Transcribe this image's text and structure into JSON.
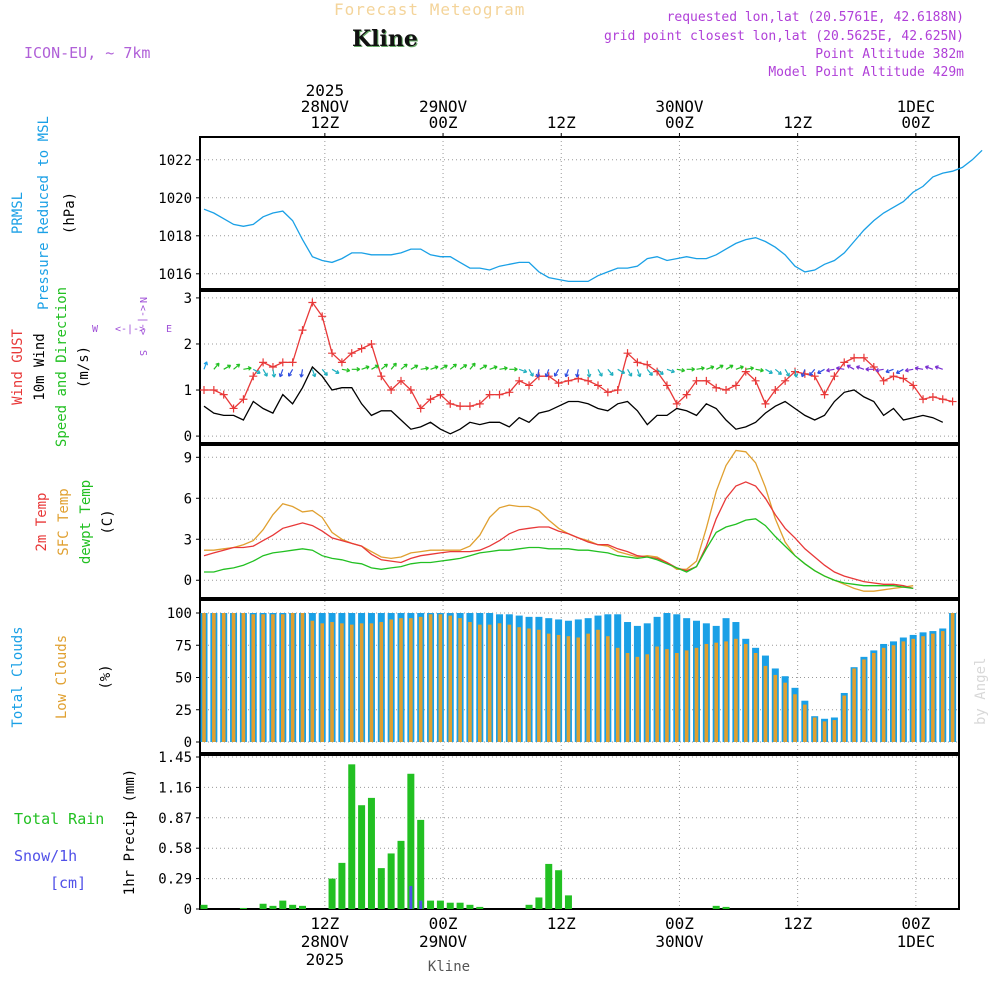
{
  "header": {
    "title": "Forecast Meteogram",
    "location": "Kline",
    "model": "ICON-EU, ~ 7km",
    "info": [
      "requested lon,lat (20.5761E, 42.6188N)",
      "grid point closest lon,lat (20.5625E, 42.625N)",
      "Point Altitude 382m",
      "Model Point Altitude 429m"
    ],
    "watermark": "by Angel",
    "footer": "Kline"
  },
  "colors": {
    "pressure": "#1aa0e6",
    "gust": "#e83838",
    "wind": "#000000",
    "temp2m": "#e83838",
    "sfc": "#e0a030",
    "dew": "#22c022",
    "total_clouds": "#1aa0e6",
    "low_clouds": "#e0a030",
    "rain": "#22c022",
    "snow": "#5050e8",
    "compass": "#a050d8"
  },
  "time_axis": {
    "top": [
      {
        "hour": 12,
        "lines": [
          "2025",
          "28NOV",
          "12Z"
        ]
      },
      {
        "hour": 24,
        "lines": [
          "29NOV",
          "00Z"
        ]
      },
      {
        "hour": 36,
        "lines": [
          "12Z"
        ]
      },
      {
        "hour": 48,
        "lines": [
          "30NOV",
          "00Z"
        ]
      },
      {
        "hour": 60,
        "lines": [
          "12Z"
        ]
      },
      {
        "hour": 72,
        "lines": [
          "1DEC",
          "00Z"
        ]
      }
    ],
    "bottom": [
      {
        "hour": 12,
        "lines": [
          "12Z",
          "28NOV",
          "2025"
        ]
      },
      {
        "hour": 24,
        "lines": [
          "00Z",
          "29NOV"
        ]
      },
      {
        "hour": 36,
        "lines": [
          "12Z"
        ]
      },
      {
        "hour": 48,
        "lines": [
          "00Z",
          "30NOV"
        ]
      },
      {
        "hour": 60,
        "lines": [
          "12Z"
        ]
      },
      {
        "hour": 72,
        "lines": [
          "00Z",
          "1DEC"
        ]
      }
    ]
  },
  "panel_labels": {
    "pressure": [
      {
        "text": "PRMSL",
        "color": "pressure"
      },
      {
        "text": "Pressure Reduced to MSL",
        "color": "pressure"
      },
      {
        "text": "(hPa)",
        "color": "wind"
      }
    ],
    "wind": [
      {
        "text": "Wind GUST",
        "color": "gust"
      },
      {
        "text": "10m Wind",
        "color": "wind"
      },
      {
        "text": "Speed and Direction",
        "color": "dew"
      },
      {
        "text": "(m/s)",
        "color": "wind"
      }
    ],
    "temp": [
      {
        "text": "2m Temp",
        "color": "temp2m"
      },
      {
        "text": "SFC Temp",
        "color": "sfc"
      },
      {
        "text": "dewpt Temp",
        "color": "dew"
      },
      {
        "text": "(C)",
        "color": "wind"
      }
    ],
    "clouds": [
      {
        "text": "Total Clouds",
        "color": "total_clouds"
      },
      {
        "text": "Low Clouds",
        "color": "low_clouds"
      },
      {
        "text": "(%)",
        "color": "wind"
      }
    ],
    "precip_side": [
      {
        "text": "Total  Rain",
        "color": "rain"
      },
      {
        "text": "Snow/1h",
        "color": "snow"
      },
      {
        "text": "[cm]",
        "color": "snow"
      }
    ],
    "precip_axis": "1hr Precip (mm)"
  },
  "compass": {
    "n": "N",
    "s": "S",
    "e": "E",
    "w": "W"
  },
  "chart_data": {
    "type": "line",
    "x_hours_start": 0,
    "x_hours_end": 77,
    "pressure": {
      "ylim": [
        1015.2,
        1023.2
      ],
      "ticks": [
        1016,
        1018,
        1020,
        1022
      ],
      "values": [
        1019.4,
        1019.2,
        1018.9,
        1018.6,
        1018.5,
        1018.6,
        1019.0,
        1019.2,
        1019.3,
        1018.8,
        1017.8,
        1016.9,
        1016.7,
        1016.6,
        1016.8,
        1017.1,
        1017.1,
        1017.0,
        1017.0,
        1017.0,
        1017.1,
        1017.3,
        1017.3,
        1017.0,
        1016.9,
        1016.9,
        1016.6,
        1016.3,
        1016.3,
        1016.2,
        1016.4,
        1016.5,
        1016.6,
        1016.6,
        1016.1,
        1015.8,
        1015.7,
        1015.6,
        1015.6,
        1015.6,
        1015.9,
        1016.1,
        1016.3,
        1016.3,
        1016.4,
        1016.8,
        1016.9,
        1016.7,
        1016.8,
        1016.9,
        1016.8,
        1016.8,
        1017.0,
        1017.3,
        1017.6,
        1017.8,
        1017.9,
        1017.7,
        1017.4,
        1017.0,
        1016.4,
        1016.1,
        1016.2,
        1016.5,
        1016.7,
        1017.1,
        1017.7,
        1018.3,
        1018.8,
        1019.2,
        1019.5,
        1019.8,
        1020.3,
        1020.6,
        1021.1,
        1021.3,
        1021.4,
        1021.6,
        1022.0,
        1022.5
      ]
    },
    "wind": {
      "ylim": [
        -0.15,
        3.15
      ],
      "ticks": [
        0,
        1,
        2,
        3
      ],
      "gust": [
        1.0,
        1.0,
        0.9,
        0.6,
        0.8,
        1.3,
        1.6,
        1.5,
        1.6,
        1.6,
        2.3,
        2.9,
        2.6,
        1.8,
        1.6,
        1.8,
        1.9,
        2.0,
        1.3,
        1.0,
        1.2,
        1.0,
        0.6,
        0.8,
        0.9,
        0.7,
        0.65,
        0.65,
        0.7,
        0.9,
        0.9,
        0.95,
        1.2,
        1.1,
        1.3,
        1.3,
        1.15,
        1.2,
        1.25,
        1.2,
        1.1,
        0.95,
        1.0,
        1.8,
        1.6,
        1.55,
        1.4,
        1.1,
        0.7,
        0.9,
        1.2,
        1.2,
        1.05,
        1.0,
        1.1,
        1.4,
        1.2,
        0.7,
        1.0,
        1.2,
        1.4,
        1.35,
        1.3,
        0.9,
        1.3,
        1.6,
        1.7,
        1.7,
        1.5,
        1.2,
        1.3,
        1.25,
        1.1,
        0.8,
        0.85,
        0.8,
        0.75
      ],
      "speed": [
        0.65,
        0.5,
        0.45,
        0.45,
        0.35,
        0.75,
        0.6,
        0.5,
        0.9,
        0.7,
        1.05,
        1.5,
        1.3,
        1.0,
        1.05,
        1.05,
        0.7,
        0.45,
        0.55,
        0.55,
        0.35,
        0.15,
        0.2,
        0.3,
        0.15,
        0.05,
        0.15,
        0.3,
        0.25,
        0.3,
        0.3,
        0.2,
        0.4,
        0.3,
        0.5,
        0.55,
        0.65,
        0.75,
        0.75,
        0.7,
        0.6,
        0.55,
        0.7,
        0.75,
        0.55,
        0.25,
        0.45,
        0.45,
        0.6,
        0.55,
        0.45,
        0.7,
        0.6,
        0.35,
        0.15,
        0.2,
        0.3,
        0.5,
        0.65,
        0.75,
        0.6,
        0.45,
        0.35,
        0.45,
        0.75,
        0.95,
        1.0,
        0.85,
        0.75,
        0.45,
        0.6,
        0.35,
        0.4,
        0.45,
        0.4,
        0.3
      ],
      "directions": [
        200,
        220,
        240,
        230,
        260,
        300,
        330,
        350,
        20,
        30,
        10,
        340,
        320,
        300,
        280,
        270,
        250,
        240,
        230,
        220,
        230,
        240,
        260,
        250,
        240,
        230,
        235,
        220,
        240,
        250,
        260,
        270,
        290,
        330,
        10,
        20,
        30,
        20,
        10,
        350,
        330,
        320,
        300,
        330,
        340,
        320,
        310,
        290,
        280,
        270,
        260,
        250,
        240,
        240,
        250,
        260,
        280,
        300,
        310,
        330,
        350,
        20,
        40,
        60,
        80,
        100,
        120,
        110,
        90,
        80,
        70,
        60,
        80,
        100,
        110,
        110
      ]
    },
    "temperature": {
      "ylim": [
        -1.3,
        9.9
      ],
      "ticks": [
        0,
        3,
        6,
        9
      ],
      "t2m": [
        1.8,
        2.0,
        2.2,
        2.4,
        2.4,
        2.5,
        2.9,
        3.3,
        3.8,
        4.0,
        4.2,
        4.0,
        3.6,
        3.1,
        2.9,
        2.7,
        2.5,
        1.9,
        1.5,
        1.4,
        1.3,
        1.6,
        1.8,
        1.9,
        2.0,
        2.1,
        2.1,
        2.1,
        2.2,
        2.5,
        2.9,
        3.4,
        3.7,
        3.8,
        3.9,
        3.9,
        3.6,
        3.4,
        3.1,
        2.8,
        2.6,
        2.6,
        2.3,
        2.1,
        1.8,
        1.7,
        1.6,
        1.3,
        0.9,
        0.7,
        1.0,
        2.5,
        4.5,
        6.0,
        6.9,
        7.2,
        6.9,
        6.0,
        4.8,
        3.8,
        3.1,
        2.3,
        1.7,
        1.1,
        0.6,
        0.3,
        0.1,
        -0.1,
        -0.2,
        -0.3,
        -0.3,
        -0.4,
        -0.6
      ],
      "sfc": [
        2.2,
        2.2,
        2.3,
        2.4,
        2.6,
        2.9,
        3.7,
        4.8,
        5.6,
        5.4,
        5.0,
        5.1,
        4.6,
        3.5,
        3.0,
        2.7,
        2.5,
        2.1,
        1.7,
        1.6,
        1.7,
        2.0,
        2.1,
        2.2,
        2.2,
        2.2,
        2.2,
        2.5,
        3.3,
        4.6,
        5.3,
        5.5,
        5.4,
        5.4,
        5.1,
        4.4,
        3.8,
        3.4,
        3.1,
        2.9,
        2.6,
        2.5,
        2.1,
        1.9,
        1.7,
        1.8,
        1.7,
        1.3,
        0.8,
        0.8,
        1.4,
        3.8,
        6.5,
        8.4,
        9.5,
        9.4,
        8.6,
        6.8,
        4.5,
        2.8,
        1.8,
        1.2,
        0.7,
        0.3,
        0.0,
        -0.3,
        -0.6,
        -0.8,
        -0.8,
        -0.7,
        -0.6,
        -0.5,
        -0.4
      ],
      "dew": [
        0.6,
        0.6,
        0.8,
        0.9,
        1.1,
        1.4,
        1.8,
        2.0,
        2.1,
        2.2,
        2.3,
        2.2,
        1.8,
        1.6,
        1.5,
        1.3,
        1.2,
        0.9,
        0.8,
        0.9,
        1.0,
        1.2,
        1.3,
        1.3,
        1.4,
        1.5,
        1.6,
        1.8,
        2.0,
        2.1,
        2.2,
        2.2,
        2.3,
        2.4,
        2.4,
        2.3,
        2.3,
        2.3,
        2.2,
        2.2,
        2.1,
        2.0,
        1.8,
        1.7,
        1.6,
        1.7,
        1.5,
        1.2,
        0.9,
        0.6,
        1.0,
        2.3,
        3.5,
        3.9,
        4.1,
        4.4,
        4.5,
        4.0,
        3.2,
        2.5,
        1.8,
        1.2,
        0.7,
        0.3,
        0.0,
        -0.2,
        -0.3,
        -0.4,
        -0.4,
        -0.4,
        -0.4,
        -0.5,
        -0.6
      ],
      "dew_line_start": 0
    },
    "clouds": {
      "ylim": [
        0,
        100
      ],
      "ticks": [
        0,
        25,
        50,
        75,
        100
      ],
      "total": [
        100,
        100,
        100,
        100,
        100,
        100,
        100,
        100,
        100,
        100,
        100,
        100,
        100,
        100,
        100,
        100,
        100,
        100,
        100,
        100,
        100,
        100,
        100,
        100,
        100,
        100,
        100,
        100,
        100,
        100,
        99,
        99,
        98,
        97,
        97,
        96,
        95,
        94,
        95,
        96,
        98,
        99,
        99,
        93,
        90,
        92,
        97,
        100,
        99,
        96,
        94,
        92,
        90,
        96,
        93,
        80,
        73,
        67,
        57,
        51,
        42,
        32,
        20,
        18,
        19,
        38,
        58,
        66,
        71,
        76,
        78,
        81,
        83,
        85,
        86,
        88,
        100
      ],
      "low": [
        100,
        100,
        100,
        100,
        100,
        99,
        99,
        99,
        99,
        100,
        100,
        94,
        92,
        93,
        92,
        91,
        92,
        92,
        93,
        95,
        96,
        96,
        97,
        99,
        99,
        98,
        96,
        93,
        91,
        91,
        92,
        91,
        89,
        88,
        87,
        84,
        83,
        82,
        81,
        84,
        87,
        82,
        73,
        69,
        66,
        68,
        74,
        72,
        69,
        71,
        73,
        76,
        77,
        78,
        80,
        76,
        69,
        59,
        52,
        46,
        37,
        29,
        19,
        16,
        17,
        36,
        57,
        64,
        69,
        73,
        75,
        78,
        80,
        82,
        84,
        86,
        100
      ]
    },
    "precip": {
      "ylim": [
        0,
        1.45
      ],
      "ticks": [
        0,
        0.29,
        0.58,
        0.87,
        1.16,
        1.45
      ],
      "tick_labels": [
        "0",
        "0.29",
        "0.58",
        "0.87",
        "1.16",
        "1.45"
      ],
      "rain": [
        0.04,
        0,
        0,
        0,
        0.01,
        0,
        0.05,
        0.03,
        0.08,
        0.04,
        0.03,
        0,
        0,
        0.29,
        0.44,
        1.38,
        0.99,
        1.06,
        0.39,
        0.53,
        0.65,
        1.29,
        0.85,
        0.08,
        0.08,
        0.06,
        0.06,
        0.04,
        0.02,
        0,
        0,
        0,
        0,
        0.04,
        0.11,
        0.43,
        0.37,
        0.13,
        0,
        0,
        0,
        0,
        0,
        0,
        0,
        0,
        0,
        0,
        0,
        0,
        0,
        0,
        0.03,
        0.02,
        0,
        0,
        0,
        0,
        0,
        0,
        0,
        0,
        0,
        0,
        0,
        0,
        0,
        0,
        0,
        0,
        0,
        0,
        0,
        0,
        0,
        0,
        0,
        0
      ],
      "snow": [
        0,
        0,
        0,
        0,
        0,
        0,
        0,
        0,
        0,
        0,
        0,
        0,
        0,
        0,
        0,
        0,
        0,
        0,
        0,
        0,
        0,
        0.22,
        0.08,
        0,
        0,
        0,
        0,
        0,
        0,
        0,
        0,
        0,
        0,
        0,
        0,
        0,
        0,
        0,
        0,
        0,
        0,
        0,
        0,
        0,
        0,
        0,
        0,
        0,
        0,
        0,
        0,
        0,
        0,
        0,
        0,
        0,
        0,
        0,
        0,
        0,
        0,
        0,
        0,
        0,
        0,
        0,
        0,
        0,
        0,
        0,
        0,
        0,
        0,
        0,
        0,
        0
      ]
    }
  }
}
